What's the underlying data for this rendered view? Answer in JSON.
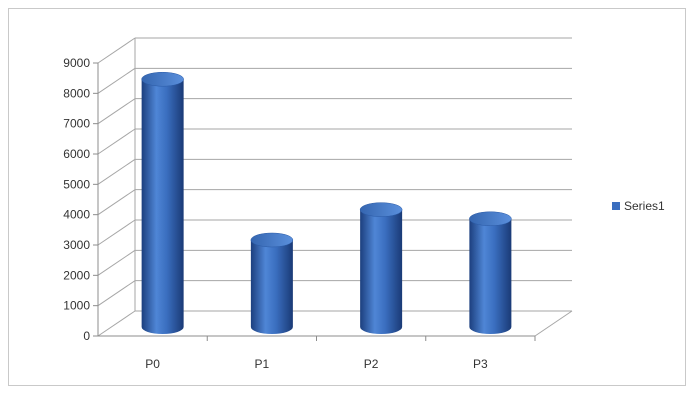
{
  "chart_data": {
    "type": "bar",
    "style": "3d-cylinder",
    "categories": [
      "P0",
      "P1",
      "P2",
      "P3"
    ],
    "series": [
      {
        "name": "Series1",
        "values": [
          8300,
          3000,
          4000,
          3700
        ],
        "color": "#3a6ebf"
      }
    ],
    "title": "",
    "xlabel": "",
    "ylabel": "",
    "ylim": [
      0,
      9000
    ],
    "yticks": [
      0,
      1000,
      2000,
      3000,
      4000,
      5000,
      6000,
      7000,
      8000,
      9000
    ],
    "grid": true,
    "legend": "right"
  }
}
